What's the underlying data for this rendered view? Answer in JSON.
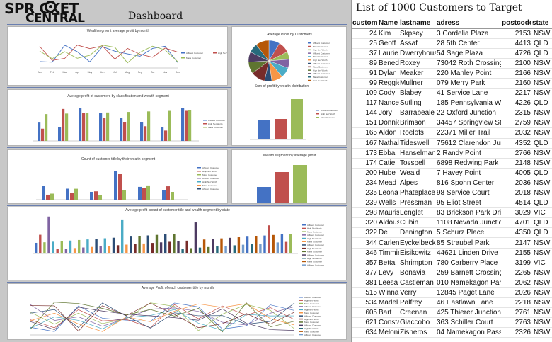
{
  "logo": {
    "line1": "SPR  CKET",
    "line2": "CENTRAL"
  },
  "dashboard_title": "Dashboard",
  "charts": {
    "line_top": {
      "title": "Wealthsegment average profit by month",
      "legend": [
        "Affluent Customer",
        "High Net Worth",
        "Mass Customer"
      ],
      "months": [
        "Jan",
        "Feb",
        "Mar",
        "Apr",
        "May",
        "Jun",
        "Jul",
        "Aug",
        "Sep",
        "Oct",
        "Nov",
        "Dec"
      ]
    },
    "pie": {
      "title": "Average Profit by Customers",
      "legend": [
        "Affluent Customer",
        "Mass Customer",
        "High Net Worth",
        "Affluent Customer",
        "Mass Customer",
        "High Net Worth",
        "Affluent Customer",
        "Mass Customer",
        "High Net Worth",
        "Affluent Customer",
        "Mass Customer",
        "High Net Worth"
      ]
    },
    "class_bar": {
      "title": "Average profit of customers by classification and wealth segment",
      "legend": [
        "Affluent Customer",
        "High Net Worth",
        "Mass Customer"
      ]
    },
    "sum_bar": {
      "title": "Sum of profit by wealth distribution",
      "legend": [
        "Affluent Customer",
        "High Net Worth",
        "Mass Customer"
      ]
    },
    "title_bar": {
      "title": "Count of customer title by their wealth segment",
      "legend": [
        "Affluent Customer",
        "High Net Worth",
        "Mass Customer",
        "Affluent Customer",
        "High Net Worth",
        "Mass Customer",
        "Affluent Customer"
      ]
    },
    "wealth_bar": {
      "title": "Wealth segment by average profit"
    },
    "state_bar": {
      "title": "Average profit ,count of customer title and wealth segment by state",
      "legend": [
        "Affluent Customer",
        "High Net Worth",
        "Mass Customer",
        "Affluent Customer",
        "High Net Worth",
        "Mass Customer",
        "Affluent Customer",
        "High Net Worth",
        "Mass Customer",
        "Affluent Customer",
        "High Net Worth",
        "Mass Customer",
        "Affluent Customer"
      ]
    },
    "line_bottom": {
      "title": "Average Profit of each customer title by month",
      "legend": [
        "Affluent Customer",
        "High Net Worth",
        "Mass Customer",
        "Affluent Customer",
        "High Net Worth",
        "Mass Customer",
        "Affluent Customer",
        "High Net Worth",
        "Mass Customer",
        "Affluent Customer",
        "High Net Worth",
        "Mass Customer",
        "Affluent Customer"
      ]
    }
  },
  "table": {
    "title": "List of 1000 Customers to Target",
    "columns": [
      "customer_id",
      "Name",
      "lastname",
      "adress",
      "postcode",
      "state"
    ],
    "rows": [
      [
        "24",
        "Kim",
        "Skpsey",
        "3 Cordelia Plaza",
        "2153",
        "NSW"
      ],
      [
        "25",
        "Geoff",
        "Assaf",
        "28 5th Center",
        "4413",
        "QLD"
      ],
      [
        "37",
        "Laurie",
        "Dwerryhouse",
        "54 Sage Plaza",
        "4726",
        "QLD"
      ],
      [
        "89",
        "Benedicto",
        "Roxey",
        "73042 Roth Crossing",
        "2100",
        "NSW"
      ],
      [
        "91",
        "Dylan",
        "Meaker",
        "220 Manley Point",
        "2166",
        "NSW"
      ],
      [
        "99",
        "Reggie",
        "Mullner",
        "079 Merry Park",
        "2160",
        "NSW"
      ],
      [
        "109",
        "Cody",
        "Blabey",
        "41 Service Lane",
        "2217",
        "NSW"
      ],
      [
        "117",
        "Nance",
        "Sutling",
        "185 Pennsylvania Way",
        "4226",
        "QLD"
      ],
      [
        "144",
        "Jory",
        "Barrabeale",
        "22 Oxford Junction",
        "2315",
        "NSW"
      ],
      [
        "151",
        "Donnie",
        "Brimson",
        "34457 Springview Street",
        "2759",
        "NSW"
      ],
      [
        "165",
        "Aldon",
        "Roelofs",
        "22371 Miller Trail",
        "2032",
        "NSW"
      ],
      [
        "167",
        "Nathalie",
        "Tideswell",
        "75612 Clarendon Junction",
        "4352",
        "QLD"
      ],
      [
        "173",
        "Ebba",
        "Hanselmann",
        "2 Randy Point",
        "2766",
        "NSW"
      ],
      [
        "174",
        "Catie",
        "Tosspell",
        "6898 Redwing Park",
        "2148",
        "NSW"
      ],
      [
        "200",
        "Hube",
        "Weald",
        "7 Havey Point",
        "4005",
        "QLD"
      ],
      [
        "234",
        "Mead",
        "Alpes",
        "816 Spohn Center",
        "2036",
        "NSW"
      ],
      [
        "235",
        "Leona",
        "Phateplace",
        "98 Service Court",
        "2018",
        "NSW"
      ],
      [
        "239",
        "Wells",
        "Pressman",
        "95 Eliot Street",
        "4514",
        "QLD"
      ],
      [
        "298",
        "Maurise",
        "Lenglet",
        "83 Brickson Park Drive",
        "3029",
        "VIC"
      ],
      [
        "320",
        "Aldous",
        "Cubin",
        "1108 Nevada Junction",
        "4701",
        "QLD"
      ],
      [
        "322",
        "De",
        "Denington",
        "5 Schurz Place",
        "4350",
        "QLD"
      ],
      [
        "344",
        "Carlene",
        "Eyckelbeck",
        "85 Straubel Park",
        "2147",
        "NSW"
      ],
      [
        "346",
        "Timmie",
        "Eisikowitz",
        "44621 Linden Drive",
        "2155",
        "NSW"
      ],
      [
        "357",
        "Betta",
        "Shrimpton",
        "780 Carberry Place",
        "3199",
        "VIC"
      ],
      [
        "377",
        "Levy",
        "Bonavia",
        "259 Barnett Crossing",
        "2265",
        "NSW"
      ],
      [
        "381",
        "Leesa",
        "Castleman",
        "010 Namekagon Parkway",
        "2062",
        "NSW"
      ],
      [
        "515",
        "Winna",
        "Verry",
        "12845 Paget Lane",
        "2026",
        "NSW"
      ],
      [
        "534",
        "Madel",
        "Palfrey",
        "46 Eastlawn Lane",
        "2218",
        "NSW"
      ],
      [
        "605",
        "Bart",
        "Creenan",
        "425 Thierer Junction",
        "2761",
        "NSW"
      ],
      [
        "621",
        "Constantin",
        "Giaccobo",
        "363 Schiller Court",
        "2763",
        "NSW"
      ],
      [
        "634",
        "Melonie",
        "Zisneros",
        "04 Namekagon Pass",
        "2326",
        "NSW"
      ]
    ]
  },
  "colors": {
    "blue": "#4472c4",
    "red": "#c0504d",
    "green": "#9bbb59",
    "purple": "#8064a2",
    "cyan": "#4bacc6",
    "orange": "#f79646"
  }
}
